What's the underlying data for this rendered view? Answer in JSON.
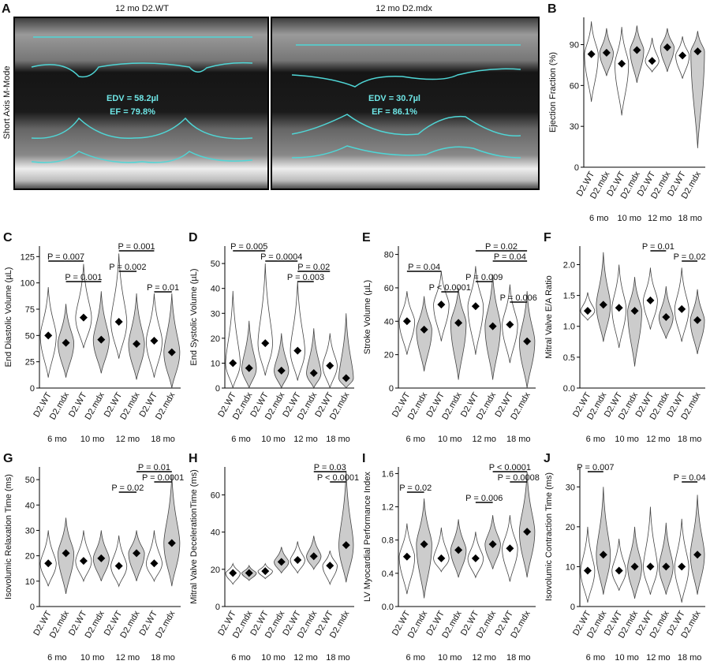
{
  "panel_a": {
    "letter": "A",
    "left_title": "12 mo D2.WT",
    "right_title": "12 mo D2.mdx",
    "y_label": "Short Axis M-Mode",
    "left_edv": "EDV = 58.2µl",
    "left_ef": "EF = 79.8%",
    "right_edv": "EDV = 30.7µl",
    "right_ef": "EF = 86.1%"
  },
  "chart_data": [
    {
      "type": "violin",
      "letter": "B",
      "y_label": "Ejection Fraction (%)",
      "categories": [
        "D2.WT",
        "D2.mdx",
        "D2.WT",
        "D2.mdx",
        "D2.WT",
        "D2.mdx",
        "D2.WT",
        "D2.mdx"
      ],
      "groups": [
        "6 mo",
        "10 mo",
        "12 mo",
        "18 mo"
      ],
      "colors": [
        "#ffffff",
        "#cccccc"
      ],
      "mean": [
        83,
        84,
        76,
        86,
        78,
        88,
        82,
        85
      ],
      "min": [
        48,
        67,
        38,
        62,
        70,
        70,
        65,
        14
      ],
      "max": [
        107,
        102,
        103,
        104,
        95,
        102,
        96,
        100
      ],
      "ylim": [
        0,
        110
      ],
      "yticks": [
        0,
        30,
        60,
        90
      ],
      "brackets": []
    },
    {
      "type": "violin",
      "letter": "C",
      "y_label": "End Diastolic Volume (µL)",
      "categories": [
        "D2.WT",
        "D2.mdx",
        "D2.WT",
        "D2.mdx",
        "D2.WT",
        "D2.mdx",
        "D2.WT",
        "D2.mdx"
      ],
      "groups": [
        "6 mo",
        "10 mo",
        "12 mo",
        "18 mo"
      ],
      "colors": [
        "#ffffff",
        "#cccccc"
      ],
      "mean": [
        50,
        43,
        67,
        46,
        63,
        42,
        45,
        34
      ],
      "min": [
        10,
        10,
        38,
        14,
        28,
        8,
        10,
        0
      ],
      "max": [
        96,
        80,
        118,
        92,
        128,
        90,
        90,
        90
      ],
      "ylim": [
        0,
        135
      ],
      "yticks": [
        0,
        25,
        50,
        75,
        100,
        125
      ],
      "brackets": [
        {
          "label": "P = 0.001",
          "pair": [
            4,
            6
          ]
        },
        {
          "label": "P = 0.007",
          "pair": [
            0,
            2
          ]
        },
        {
          "label": "P = 0.002",
          "pair": [
            4,
            5
          ]
        },
        {
          "label": "P = 0.001",
          "pair": [
            1,
            3
          ]
        },
        {
          "label": "P = 0.01",
          "pair": [
            6,
            7
          ]
        }
      ]
    },
    {
      "type": "violin",
      "letter": "D",
      "y_label": "End Systolic Volume (µL)",
      "categories": [
        "D2.WT",
        "D2.mdx",
        "D2.WT",
        "D2.mdx",
        "D2.WT",
        "D2.mdx",
        "D2.WT",
        "D2.mdx"
      ],
      "groups": [
        "6 mo",
        "10 mo",
        "12 mo",
        "18 mo"
      ],
      "colors": [
        "#ffffff",
        "#cccccc"
      ],
      "mean": [
        10,
        8,
        18,
        7,
        15,
        6,
        9,
        4
      ],
      "min": [
        0,
        0,
        5,
        0,
        3,
        0,
        0,
        0
      ],
      "max": [
        39,
        27,
        50,
        22,
        43,
        24,
        22,
        30
      ],
      "ylim": [
        0,
        57
      ],
      "yticks": [
        0,
        10,
        20,
        30,
        40,
        50
      ],
      "brackets": [
        {
          "label": "P = 0.005",
          "pair": [
            0,
            2
          ]
        },
        {
          "label": "P = 0.0004",
          "pair": [
            2,
            4
          ]
        },
        {
          "label": "P = 0.02",
          "pair": [
            4,
            6
          ]
        },
        {
          "label": "P = 0.003",
          "pair": [
            4,
            5
          ]
        }
      ]
    },
    {
      "type": "violin",
      "letter": "E",
      "y_label": "Stroke Volume (µL)",
      "categories": [
        "D2.WT",
        "D2.mdx",
        "D2.WT",
        "D2.mdx",
        "D2.WT",
        "D2.mdx",
        "D2.WT",
        "D2.mdx"
      ],
      "groups": [
        "6 mo",
        "10 mo",
        "12 mo",
        "18 mo"
      ],
      "colors": [
        "#ffffff",
        "#cccccc"
      ],
      "mean": [
        40,
        35,
        50,
        39,
        49,
        37,
        38,
        28
      ],
      "min": [
        20,
        10,
        28,
        5,
        20,
        5,
        15,
        0
      ],
      "max": [
        58,
        55,
        70,
        60,
        73,
        68,
        62,
        58
      ],
      "ylim": [
        0,
        85
      ],
      "yticks": [
        0,
        20,
        40,
        60,
        80
      ],
      "brackets": [
        {
          "label": "P = 0.02",
          "pair": [
            4,
            7
          ]
        },
        {
          "label": "P = 0.04",
          "pair": [
            5,
            7
          ]
        },
        {
          "label": "P = 0.04",
          "pair": [
            0,
            2
          ]
        },
        {
          "label": "P = 0.009",
          "pair": [
            4,
            5
          ]
        },
        {
          "label": "P < 0.0001",
          "pair": [
            2,
            3
          ]
        },
        {
          "label": "P = 0.006",
          "pair": [
            6,
            7
          ]
        }
      ]
    },
    {
      "type": "violin",
      "letter": "F",
      "y_label": "Mitral Valve E/A Ratio",
      "categories": [
        "D2.WT",
        "D2.mdx",
        "D2.WT",
        "D2.mdx",
        "D2.WT",
        "D2.mdx",
        "D2.WT",
        "D2.mdx"
      ],
      "groups": [
        "6 mo",
        "10 mo",
        "12 mo",
        "18 mo"
      ],
      "colors": [
        "#ffffff",
        "#cccccc"
      ],
      "mean": [
        1.25,
        1.35,
        1.3,
        1.25,
        1.42,
        1.15,
        1.28,
        1.1
      ],
      "min": [
        1.1,
        0.75,
        0.65,
        0.35,
        0.95,
        0.8,
        0.75,
        0.55
      ],
      "max": [
        1.55,
        2.2,
        2.0,
        1.8,
        1.95,
        1.65,
        1.95,
        1.6
      ],
      "ylim": [
        0,
        2.3
      ],
      "yticks": [
        {
          "value": 0,
          "label": "0.0"
        },
        0.5,
        {
          "value": 1,
          "label": "1.0"
        },
        1.5,
        {
          "value": 2,
          "label": "2.0"
        }
      ],
      "brackets": [
        {
          "label": "P = 0.01",
          "pair": [
            4,
            5
          ]
        },
        {
          "label": "P = 0.02",
          "pair": [
            6,
            7
          ]
        }
      ]
    },
    {
      "type": "violin",
      "letter": "G",
      "y_label": "Isovolumic Relaxation Time (ms)",
      "categories": [
        "D2.WT",
        "D2.mdx",
        "D2.WT",
        "D2.mdx",
        "D2.WT",
        "D2.mdx",
        "D2.WT",
        "D2.mdx"
      ],
      "groups": [
        "6 mo",
        "10 mo",
        "12 mo",
        "18 mo"
      ],
      "colors": [
        "#ffffff",
        "#cccccc"
      ],
      "mean": [
        17,
        21,
        18,
        19,
        16,
        21,
        17,
        25
      ],
      "min": [
        8,
        5,
        10,
        10,
        8,
        10,
        10,
        8
      ],
      "max": [
        30,
        35,
        30,
        30,
        28,
        30,
        30,
        52
      ],
      "ylim": [
        0,
        55
      ],
      "yticks": [
        0,
        10,
        20,
        30,
        40,
        50
      ],
      "brackets": [
        {
          "label": "P = 0.01",
          "pair": [
            5,
            7
          ]
        },
        {
          "label": "P = 0.0001",
          "pair": [
            6,
            7
          ]
        },
        {
          "label": "P = 0.02",
          "pair": [
            4,
            5
          ]
        }
      ]
    },
    {
      "type": "violin",
      "letter": "H",
      "y_label": "Mitral Valve DecelerationTime (ms)",
      "categories": [
        "D2.WT",
        "D2.mdx",
        "D2.WT",
        "D2.mdx",
        "D2.WT",
        "D2.mdx",
        "D2.WT",
        "D2.mdx"
      ],
      "groups": [
        "6 mo",
        "10 mo",
        "12 mo",
        "18 mo"
      ],
      "colors": [
        "#ffffff",
        "#cccccc"
      ],
      "mean": [
        18,
        18,
        19,
        24,
        25,
        27,
        22,
        33
      ],
      "min": [
        12,
        14,
        15,
        18,
        18,
        20,
        12,
        13
      ],
      "max": [
        23,
        22,
        23,
        32,
        35,
        38,
        30,
        73
      ],
      "ylim": [
        0,
        75
      ],
      "yticks": [
        0,
        20,
        40,
        60
      ],
      "brackets": [
        {
          "label": "P = 0.03",
          "pair": [
            5,
            7
          ]
        },
        {
          "label": "P < 0.0001",
          "pair": [
            6,
            7
          ]
        }
      ]
    },
    {
      "type": "violin",
      "letter": "I",
      "y_label": "LV Myocardial Performance Index",
      "categories": [
        "D2.WT",
        "D2.mdx",
        "D2.WT",
        "D2.mdx",
        "D2.WT",
        "D2.mdx",
        "D2.WT",
        "D2.mdx"
      ],
      "groups": [
        "6 mo",
        "10 mo",
        "12 mo",
        "18 mo"
      ],
      "colors": [
        "#ffffff",
        "#cccccc"
      ],
      "mean": [
        0.6,
        0.75,
        0.58,
        0.68,
        0.58,
        0.75,
        0.7,
        0.9
      ],
      "min": [
        0.15,
        0.1,
        0.42,
        0.35,
        0.35,
        0.45,
        0.3,
        0.35
      ],
      "max": [
        1.0,
        1.3,
        0.95,
        1.05,
        0.9,
        1.1,
        1.1,
        1.62
      ],
      "ylim": [
        0,
        1.68
      ],
      "yticks": [
        {
          "value": 0,
          "label": "0.0"
        },
        0.4,
        0.8,
        1.2,
        1.6
      ],
      "brackets": [
        {
          "label": "P < 0.0001",
          "pair": [
            5,
            7
          ]
        },
        {
          "label": "P = 0.0008",
          "pair": [
            6,
            7
          ]
        },
        {
          "label": "P = 0.02",
          "pair": [
            0,
            1
          ]
        },
        {
          "label": "P = 0.006",
          "pair": [
            4,
            5
          ]
        }
      ]
    },
    {
      "type": "violin",
      "letter": "J",
      "y_label": "Isovolumic Contraction Time (ms)",
      "categories": [
        "D2.WT",
        "D2.mdx",
        "D2.WT",
        "D2.mdx",
        "D2.WT",
        "D2.mdx",
        "D2.WT",
        "D2.mdx"
      ],
      "groups": [
        "6 mo",
        "10 mo",
        "12 mo",
        "18 mo"
      ],
      "colors": [
        "#ffffff",
        "#cccccc"
      ],
      "mean": [
        9,
        13,
        9,
        10,
        10,
        10,
        10,
        13
      ],
      "min": [
        1,
        3,
        4,
        2,
        3,
        3,
        1,
        3
      ],
      "max": [
        20,
        30,
        17,
        20,
        25,
        21,
        22,
        28
      ],
      "ylim": [
        0,
        35
      ],
      "yticks": [
        0,
        10,
        20,
        30
      ],
      "brackets": [
        {
          "label": "P = 0.007",
          "pair": [
            0,
            1
          ]
        },
        {
          "label": "P = 0.04",
          "pair": [
            6,
            7
          ]
        }
      ]
    }
  ]
}
